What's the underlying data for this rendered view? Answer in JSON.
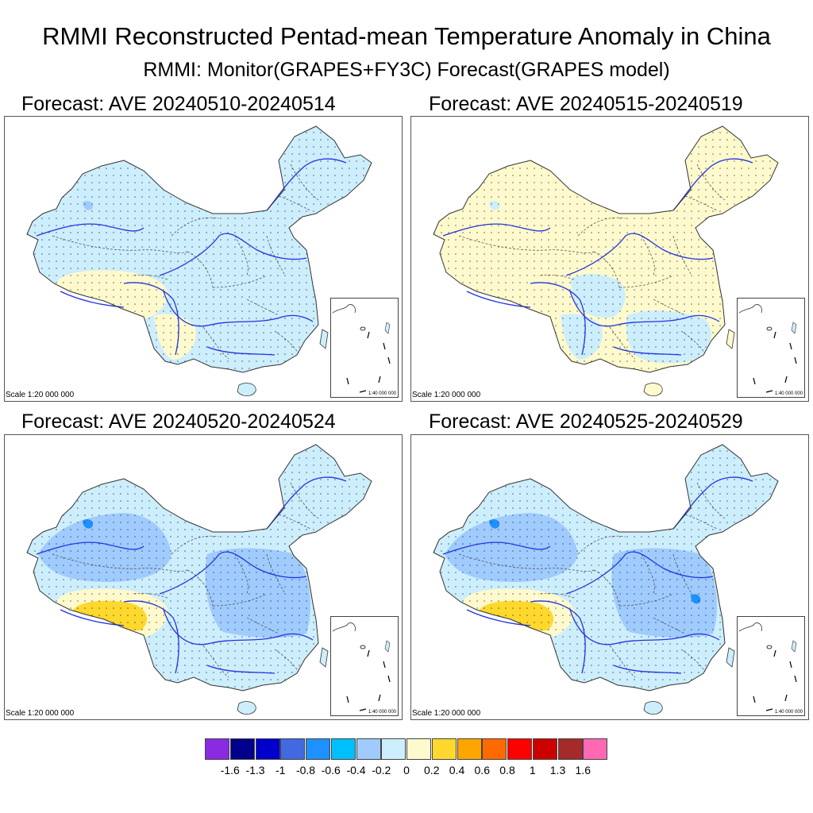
{
  "title": "RMMI Reconstructed Pentad-mean Temperature Anomaly in China",
  "subtitle": "RMMI: Monitor(GRAPES+FY3C)   Forecast(GRAPES model)",
  "panels": [
    {
      "title": "Forecast: AVE 20240510-20240514",
      "scale_label": "Scale 1:20 000 000",
      "inset_label": "1:40 000 000",
      "dominant_class": "-0.2 to 0",
      "secondary_class": "0 to 0.2",
      "secondary_region": "southern Tibet and Yunnan",
      "stippled": true
    },
    {
      "title": "Forecast: AVE 20240515-20240519",
      "scale_label": "Scale 1:20 000 000",
      "inset_label": "1:40 000 000",
      "dominant_class": "0 to 0.2",
      "secondary_class": "-0.2 to 0",
      "secondary_region": "Sichuan basin and southeast China",
      "stippled": true
    },
    {
      "title": "Forecast: AVE 20240520-20240524",
      "scale_label": "Scale 1:20 000 000",
      "inset_label": "1:40 000 000",
      "dominant_class": "-0.4 to -0.2",
      "secondary_class": "0.2 to 0.4",
      "secondary_region": "southern Tibet",
      "stippled": true
    },
    {
      "title": "Forecast: AVE 20240525-20240529",
      "scale_label": "Scale 1:20 000 000",
      "inset_label": "1:40 000 000",
      "dominant_class": "-0.4 to -0.2",
      "secondary_class": "0.4 to 0.6",
      "secondary_region": "southern Tibet",
      "stippled": true
    }
  ],
  "legend": {
    "colors": [
      "#8a2be2",
      "#00008b",
      "#0000cd",
      "#4169e1",
      "#1e90ff",
      "#00bfff",
      "#a0cbff",
      "#cdeefc",
      "#fffacd",
      "#ffd82e",
      "#ffa500",
      "#ff6a00",
      "#ff0000",
      "#cc0000",
      "#a52a2a",
      "#ff69b4"
    ],
    "ticks": [
      "-1.6",
      "-1.3",
      "-1",
      "-0.8",
      "-0.6",
      "-0.4",
      "-0.2",
      "0",
      "0.2",
      "0.4",
      "0.6",
      "0.8",
      "1",
      "1.3",
      "1.6"
    ]
  }
}
